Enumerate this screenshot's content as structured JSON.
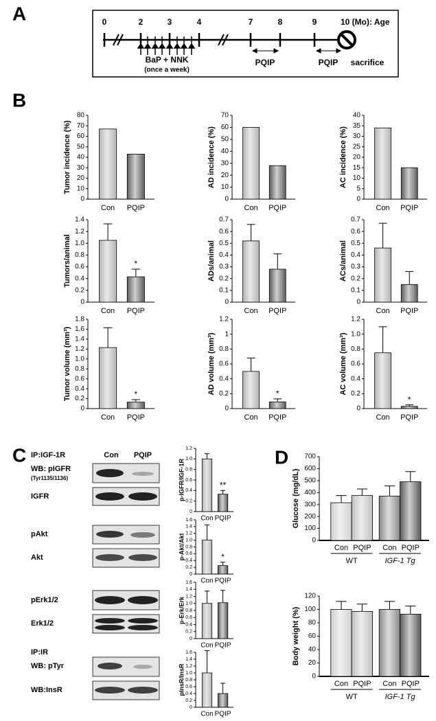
{
  "panel_labels": [
    "A",
    "B",
    "C",
    "D"
  ],
  "timeline": {
    "ages": [
      0,
      2,
      3,
      4,
      7,
      8,
      9
    ],
    "end_label": "10 (Mo): Age",
    "treatment": "BaP + NNK",
    "schedule": "(once a week)",
    "drug_windows": [
      "PQIP",
      "PQIP"
    ],
    "endpoint": "sacrifice"
  },
  "blots": {
    "headers": [
      "Con",
      "PQIP"
    ],
    "labels": [
      "IP:IGF-1R",
      "WB: pIGFR",
      "(Tyr1135/1136)",
      "IGFR",
      "pAkt",
      "Akt",
      "pErk1/2",
      "Erk1/2",
      "IP:IR",
      "WB: pTyr",
      "WB:InsR"
    ]
  },
  "chart_data": [
    {
      "type": "bar",
      "y_label": "Tumor incidence (%)",
      "categories": [
        "Con",
        "PQIP"
      ],
      "values": [
        67,
        43
      ],
      "colors": [
        "#b4b4b4",
        "#5e5e5e"
      ],
      "ylim": [
        0,
        80
      ],
      "yticks": [
        0,
        10,
        20,
        30,
        40,
        50,
        60,
        70,
        80
      ]
    },
    {
      "type": "bar",
      "y_label": "AD incidence (%)",
      "categories": [
        "Con",
        "PQIP"
      ],
      "values": [
        60,
        28
      ],
      "colors": [
        "#b4b4b4",
        "#5e5e5e"
      ],
      "ylim": [
        0,
        70
      ],
      "yticks": [
        0,
        10,
        20,
        30,
        40,
        50,
        60,
        70
      ]
    },
    {
      "type": "bar",
      "y_label": "AC incidence (%)",
      "categories": [
        "Con",
        "PQIP"
      ],
      "values": [
        34,
        15
      ],
      "colors": [
        "#b4b4b4",
        "#5e5e5e"
      ],
      "ylim": [
        0,
        40
      ],
      "yticks": [
        0,
        5,
        10,
        15,
        20,
        25,
        30,
        35,
        40
      ]
    },
    {
      "type": "bar",
      "y_label": "Tumors/animal",
      "categories": [
        "Con",
        "PQIP"
      ],
      "values": [
        1.05,
        0.43
      ],
      "errors": [
        0.28,
        0.13
      ],
      "stars": [
        null,
        "*"
      ],
      "colors": [
        "#b4b4b4",
        "#5e5e5e"
      ],
      "ylim": [
        0,
        1.4
      ],
      "yticks": [
        0,
        0.2,
        0.4,
        0.6,
        0.8,
        {
          "value": 1,
          "label": "1.0"
        },
        1.2,
        1.4
      ]
    },
    {
      "type": "bar",
      "y_label": "ADs/animal",
      "categories": [
        "Con",
        "PQIP"
      ],
      "values": [
        0.52,
        0.28
      ],
      "errors": [
        0.14,
        0.13
      ],
      "colors": [
        "#b4b4b4",
        "#5e5e5e"
      ],
      "ylim": [
        0,
        0.7
      ],
      "yticks": [
        0,
        0.1,
        0.2,
        0.3,
        0.4,
        0.5,
        0.6,
        0.7
      ]
    },
    {
      "type": "bar",
      "y_label": "ACs/animal",
      "categories": [
        "Con",
        "PQIP"
      ],
      "values": [
        0.46,
        0.15
      ],
      "errors": [
        0.21,
        0.11
      ],
      "colors": [
        "#b4b4b4",
        "#5e5e5e"
      ],
      "ylim": [
        0,
        0.7
      ],
      "yticks": [
        0,
        0.1,
        0.2,
        0.3,
        0.4,
        0.5,
        0.6,
        0.7
      ]
    },
    {
      "type": "bar",
      "y_label": "Tumor volume (mm³)",
      "categories": [
        "Con",
        "PQIP"
      ],
      "values": [
        1.23,
        0.13
      ],
      "errors": [
        0.4,
        0.05
      ],
      "stars": [
        null,
        "*"
      ],
      "colors": [
        "#b4b4b4",
        "#5e5e5e"
      ],
      "ylim": [
        0,
        1.8
      ],
      "yticks": [
        0,
        0.2,
        0.4,
        0.6,
        0.8,
        {
          "value": 1,
          "label": "1.0"
        },
        1.2,
        1.4,
        1.6,
        1.8
      ]
    },
    {
      "type": "bar",
      "y_label": "AD volume (mm³)",
      "categories": [
        "Con",
        "PQIP"
      ],
      "values": [
        0.5,
        0.09
      ],
      "errors": [
        0.18,
        0.04
      ],
      "stars": [
        null,
        "*"
      ],
      "colors": [
        "#b4b4b4",
        "#5e5e5e"
      ],
      "ylim": [
        0,
        1.2
      ],
      "yticks": [
        0,
        0.2,
        0.4,
        0.6,
        0.8,
        1,
        1.2
      ]
    },
    {
      "type": "bar",
      "y_label": "AC volume (mm³)",
      "categories": [
        "Con",
        "PQIP"
      ],
      "values": [
        0.75,
        0.03
      ],
      "errors": [
        0.35,
        0.02
      ],
      "stars": [
        null,
        "*"
      ],
      "colors": [
        "#b4b4b4",
        "#5e5e5e"
      ],
      "ylim": [
        0,
        1.2
      ],
      "yticks": [
        0,
        0.2,
        0.4,
        0.6,
        0.8,
        {
          "value": 1,
          "label": "1.0"
        },
        1.2
      ]
    },
    {
      "type": "bar",
      "y_label": "p-IGFR/IGF-1R",
      "categories": [
        "Con",
        "PQIP"
      ],
      "values": [
        1.0,
        0.33
      ],
      "errors": [
        0.1,
        0.07
      ],
      "stars": [
        null,
        "**"
      ],
      "colors": [
        "#b4b4b4",
        "#5e5e5e"
      ],
      "ylim": [
        0,
        1.2
      ],
      "yticks": [
        0,
        0.2,
        0.4,
        0.6,
        0.8,
        {
          "value": 1,
          "label": "1.0"
        },
        1.2
      ]
    },
    {
      "type": "bar",
      "y_label": "p-Akt/Akt",
      "categories": [
        "Con",
        "PQIP"
      ],
      "values": [
        1.0,
        0.25
      ],
      "errors": [
        0.45,
        0.1
      ],
      "stars": [
        null,
        "*"
      ],
      "colors": [
        "#b4b4b4",
        "#5e5e5e"
      ],
      "ylim": [
        0,
        1.6
      ],
      "yticks": [
        0,
        0.2,
        0.4,
        0.6,
        0.8,
        {
          "value": 1,
          "label": "1.0"
        },
        1.2,
        1.4,
        1.6
      ]
    },
    {
      "type": "bar",
      "y_label": "p-Erk/Erk",
      "categories": [
        "Con",
        "PQIP"
      ],
      "values": [
        1.0,
        1.02
      ],
      "errors": [
        0.35,
        0.35
      ],
      "colors": [
        "#b4b4b4",
        "#5e5e5e"
      ],
      "ylim": [
        0,
        1.6
      ],
      "yticks": [
        0,
        0.2,
        0.4,
        0.6,
        0.8,
        {
          "value": 1,
          "label": "1.0"
        },
        1.2,
        1.4,
        1.6
      ]
    },
    {
      "type": "bar",
      "y_label": "pInsR/InsR",
      "categories": [
        "Con",
        "PQIP"
      ],
      "values": [
        1.0,
        0.4
      ],
      "errors": [
        0.65,
        0.3
      ],
      "colors": [
        "#b4b4b4",
        "#5e5e5e"
      ],
      "ylim": [
        0,
        1.6
      ],
      "yticks": [
        0,
        0.2,
        0.4,
        0.6,
        0.8,
        {
          "value": 1,
          "label": "1.0"
        },
        1.2,
        1.4,
        1.6
      ]
    },
    {
      "type": "bar",
      "y_label": "Glucose (mg/dL)",
      "categories": [
        "Con",
        "PQIP",
        "Con",
        "PQIP"
      ],
      "groups": [
        "WT",
        "IGF-1 Tg"
      ],
      "values": [
        315,
        375,
        370,
        490
      ],
      "errors": [
        60,
        55,
        85,
        85
      ],
      "colors": [
        "#d0d0d0",
        "#c0c0c0",
        "#8a8a8a",
        "#5a5a5a"
      ],
      "ylim": [
        0,
        700
      ],
      "yticks": [
        0,
        100,
        200,
        300,
        400,
        500,
        600,
        700
      ]
    },
    {
      "type": "bar",
      "y_label": "Body weight (%)",
      "categories": [
        "Con",
        "PQIP",
        "Con",
        "PQIP"
      ],
      "groups": [
        "WT",
        "IGF-1 Tg"
      ],
      "values": [
        100,
        97,
        100,
        93
      ],
      "errors": [
        12,
        11,
        12,
        12
      ],
      "colors": [
        "#d0d0d0",
        "#c0c0c0",
        "#8a8a8a",
        "#5a5a5a"
      ],
      "ylim": [
        0,
        120
      ],
      "yticks": [
        0,
        20,
        40,
        60,
        80,
        100,
        120
      ]
    }
  ]
}
